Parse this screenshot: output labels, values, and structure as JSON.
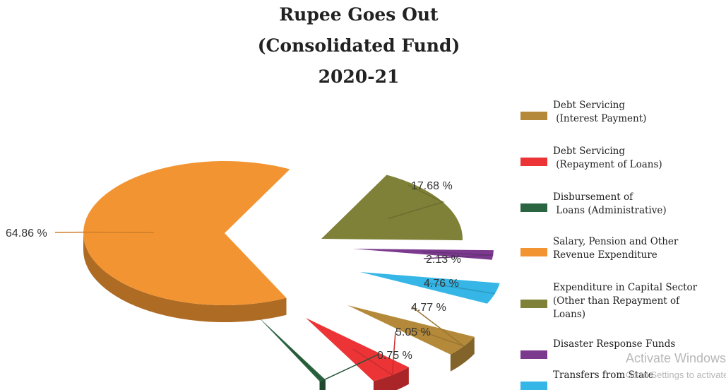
{
  "chart_data": {
    "type": "pie",
    "title": [
      "Rupee Goes Out",
      "(Consolidated Fund)",
      "2020-21"
    ],
    "legend_position": "right",
    "series": [
      {
        "name": "Debt Servicing\n (Interest Payment)",
        "value": 4.77,
        "label": "4.77 %",
        "color": "#b48a3a"
      },
      {
        "name": "Debt Servicing\n (Repayment of Loans)",
        "value": 5.05,
        "label": "5.05 %",
        "color": "#ec3436"
      },
      {
        "name": "Disbursement of\n Loans (Administrative)",
        "value": 0.75,
        "label": "0.75 %",
        "color": "#2b6440"
      },
      {
        "name": "Salary, Pension and Other\nRevenue Expenditure",
        "value": 64.86,
        "label": "64.86 %",
        "color": "#f29432"
      },
      {
        "name": "Expenditure in Capital Sector\n(Other than Repayment of\nLoans)",
        "value": 17.68,
        "label": "17.68 %",
        "color": "#7f8138"
      },
      {
        "name": "Disaster Response Funds",
        "value": 2.13,
        "label": "2.13 %",
        "color": "#7b3a8e"
      },
      {
        "name": "Transfers from State",
        "value": 4.76,
        "label": "4.76 %",
        "color": "#35b6e6"
      }
    ]
  },
  "watermark": {
    "line1": "Activate Windows",
    "line2": "Go to Settings to activate Windows."
  }
}
